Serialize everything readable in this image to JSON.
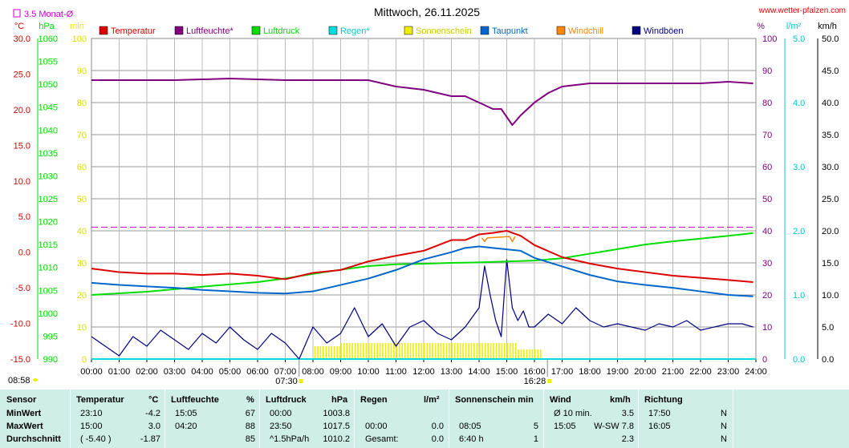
{
  "header": {
    "title": "Mittwoch, 26.11.2025",
    "site": "www.wetter-pfalzen.com",
    "monthly_avg_label": "3.5 Monat-Ø",
    "sunrise": "07:30",
    "sunset": "16:28",
    "update_time": "08:58"
  },
  "colors": {
    "temperature": "#dd0000",
    "humidity": "#800080",
    "pressure": "#00dd00",
    "rain": "#00dddd",
    "sunshine": "#eeee00",
    "dewpoint": "#0066cc",
    "windchill": "#ff8800",
    "gusts": "#000080",
    "table_bg": "#ccf5ee"
  },
  "chart_data": {
    "type": "line",
    "title": "Mittwoch, 26.11.2025",
    "x_ticks": [
      "00:00",
      "01:00",
      "02:00",
      "03:00",
      "04:00",
      "05:00",
      "06:00",
      "07:00",
      "08:00",
      "09:00",
      "10:00",
      "11:00",
      "12:00",
      "13:00",
      "14:00",
      "15:00",
      "16:00",
      "17:00",
      "18:00",
      "19:00",
      "20:00",
      "21:00",
      "22:00",
      "23:00",
      "24:00"
    ],
    "axes": {
      "temperature": {
        "unit": "°C",
        "range": [
          -15,
          30
        ],
        "ticks": [
          "30.0",
          "25.0",
          "20.0",
          "15.0",
          "10.0",
          "5.0",
          "0.0",
          "-5.0",
          "-10.0",
          "-15.0"
        ]
      },
      "pressure": {
        "unit": "hPa",
        "range": [
          990,
          1060
        ],
        "ticks": [
          "1060",
          "1055",
          "1050",
          "1045",
          "1040",
          "1035",
          "1030",
          "1025",
          "1020",
          "1015",
          "1010",
          "1005",
          "1000",
          "995",
          "990"
        ]
      },
      "sunshine": {
        "unit": "min",
        "range": [
          0,
          100
        ],
        "ticks": [
          "100",
          "90",
          "80",
          "70",
          "60",
          "50",
          "40",
          "30",
          "20",
          "10",
          "0"
        ]
      },
      "humidity": {
        "unit": "%",
        "range": [
          0,
          100
        ],
        "ticks": [
          "100",
          "90",
          "80",
          "70",
          "60",
          "50",
          "40",
          "30",
          "20",
          "10",
          "0"
        ]
      },
      "rain": {
        "unit": "l/m²",
        "range": [
          0,
          5
        ],
        "ticks": [
          "5.0",
          "4.0",
          "3.0",
          "2.0",
          "1.0",
          "0.0"
        ]
      },
      "wind": {
        "unit": "km/h",
        "range": [
          0,
          50
        ],
        "ticks": [
          "50.0",
          "45.0",
          "40.0",
          "35.0",
          "30.0",
          "25.0",
          "20.0",
          "15.0",
          "10.0",
          "5.0",
          "0.0"
        ]
      }
    },
    "legend": [
      "Temperatur",
      "Luftfeuchte*",
      "Luftdruck",
      "Regen*",
      "Sonnenschein",
      "Taupunkt",
      "Windchill",
      "Windböen"
    ],
    "monthly_avg_temp": 3.5,
    "series": [
      {
        "name": "Temperatur",
        "axis": "temperature",
        "x": [
          0,
          1,
          2,
          3,
          4,
          5,
          6,
          7,
          8,
          9,
          10,
          11,
          12,
          13,
          13.5,
          14,
          14.5,
          15,
          15.5,
          16,
          17,
          18,
          19,
          20,
          21,
          22,
          23,
          23.9
        ],
        "y": [
          -2.3,
          -2.8,
          -3.0,
          -3.0,
          -3.2,
          -3.0,
          -3.3,
          -3.8,
          -2.9,
          -2.5,
          -1.3,
          -0.5,
          0.2,
          1.7,
          1.7,
          2.5,
          2.7,
          3.0,
          2.3,
          1.0,
          -0.7,
          -1.6,
          -2.3,
          -2.8,
          -3.3,
          -3.6,
          -3.9,
          -4.2
        ]
      },
      {
        "name": "Luftfeuchte*",
        "axis": "humidity",
        "x": [
          0,
          3,
          5,
          7,
          9,
          10,
          11,
          12,
          13,
          13.5,
          14,
          14.5,
          14.8,
          15.2,
          15.5,
          16,
          16.5,
          17,
          18,
          20,
          22,
          23,
          23.9
        ],
        "y": [
          87,
          87,
          87.5,
          87,
          87,
          87,
          85,
          84,
          82,
          82,
          80,
          78,
          78,
          73,
          76,
          80,
          83,
          85,
          86,
          86,
          86,
          86.5,
          86
        ]
      },
      {
        "name": "Luftdruck",
        "axis": "pressure",
        "x": [
          0,
          2,
          4,
          6,
          7,
          8,
          9,
          10,
          11,
          12,
          13,
          14,
          15,
          16,
          17,
          18,
          19,
          20,
          21,
          22,
          23,
          23.9
        ],
        "y": [
          1004,
          1004.7,
          1005.8,
          1006.8,
          1007.6,
          1008.6,
          1009.5,
          1010.3,
          1010.7,
          1010.8,
          1011,
          1011.1,
          1011.3,
          1011.5,
          1012,
          1013,
          1014,
          1015,
          1015.7,
          1016.3,
          1016.9,
          1017.5
        ]
      },
      {
        "name": "Taupunkt",
        "axis": "temperature",
        "x": [
          0,
          1,
          2,
          3,
          4,
          5,
          6,
          7,
          8,
          9,
          10,
          11,
          12,
          13,
          13.5,
          14,
          14.5,
          15,
          15.5,
          16,
          17,
          18,
          19,
          20,
          21,
          22,
          23,
          23.9
        ],
        "y": [
          -4.3,
          -4.6,
          -4.8,
          -5.0,
          -5.3,
          -5.5,
          -5.7,
          -5.8,
          -5.5,
          -4.6,
          -3.7,
          -2.5,
          -1.0,
          0.0,
          0.6,
          0.8,
          0.6,
          0.4,
          0.2,
          -0.8,
          -2.0,
          -3.2,
          -4.1,
          -4.6,
          -5.0,
          -5.5,
          -6.0,
          -6.2
        ]
      },
      {
        "name": "Windböen",
        "axis": "wind",
        "x": [
          0,
          0.5,
          1,
          1.5,
          2,
          2.5,
          3,
          3.5,
          4,
          4.5,
          5,
          5.5,
          6,
          6.5,
          7,
          7.5,
          8,
          8.5,
          9,
          9.5,
          10,
          10.5,
          11,
          11.5,
          12,
          12.5,
          13,
          13.5,
          14,
          14.2,
          14.4,
          14.6,
          14.8,
          15,
          15.2,
          15.4,
          15.6,
          15.8,
          16,
          16.5,
          17,
          17.5,
          18,
          18.5,
          19,
          19.5,
          20,
          20.5,
          21,
          21.5,
          22,
          22.5,
          23,
          23.5,
          23.9
        ],
        "y": [
          3.5,
          2.0,
          0.5,
          3.5,
          2.0,
          4.5,
          3.0,
          1.5,
          4.0,
          2.5,
          5.0,
          3.0,
          1.5,
          4.0,
          2.5,
          0.0,
          5.0,
          2.5,
          4.0,
          8.0,
          3.5,
          5.5,
          2.0,
          5.0,
          6.0,
          4.0,
          3.0,
          5.0,
          8.0,
          14.5,
          10.0,
          6.0,
          3.5,
          15.5,
          8.0,
          6.0,
          7.5,
          5.0,
          5.0,
          7.0,
          5.5,
          8.0,
          6.0,
          5.0,
          5.5,
          5.0,
          4.5,
          5.5,
          5.0,
          6.0,
          4.5,
          5.0,
          5.5,
          5.5,
          5.0
        ]
      },
      {
        "name": "Sonnenschein",
        "axis": "sunshine",
        "x": [
          8.05,
          9,
          10,
          11,
          12,
          13,
          14,
          15,
          15.3,
          16.3
        ],
        "y": [
          4,
          5,
          5,
          5,
          5,
          5,
          5,
          5,
          3,
          3
        ]
      },
      {
        "name": "Regen*",
        "axis": "rain",
        "x": [
          0,
          24
        ],
        "y": [
          0,
          0
        ]
      },
      {
        "name": "Windchill",
        "axis": "temperature",
        "x": [
          14.1,
          14.2,
          14.3,
          15.1,
          15.2,
          15.3
        ],
        "y": [
          2.0,
          1.5,
          2.0,
          2.2,
          1.5,
          2.2
        ]
      }
    ]
  },
  "table": {
    "headers": {
      "sensor": "Sensor",
      "temp": "Temperatur",
      "temp_unit": "°C",
      "hum": "Luftfeuchte",
      "hum_unit": "%",
      "press": "Luftdruck",
      "press_unit": "hPa",
      "rain": "Regen",
      "rain_unit": "l/m²",
      "sun": "Sonnenschein min",
      "wind": "Wind",
      "wind_unit": "km/h",
      "dir": "Richtung"
    },
    "rows": [
      {
        "label": "MinWert",
        "temp_time": "23:10",
        "temp_val": "-4.2",
        "hum_time": "15:05",
        "hum_val": "67",
        "press_time": "00:00",
        "press_val": "1003.8",
        "rain_time": "",
        "rain_val": "",
        "sun_time": "",
        "sun_val": "",
        "wind_time": "Ø 10 min.",
        "wind_val": "3.5",
        "dir_time": "17:50",
        "dir_val": "N"
      },
      {
        "label": "MaxWert",
        "temp_time": "15:00",
        "temp_val": "3.0",
        "hum_time": "04:20",
        "hum_val": "88",
        "press_time": "23:50",
        "press_val": "1017.5",
        "rain_time": "00:00",
        "rain_val": "0.0",
        "sun_time": "08:05",
        "sun_val": "5",
        "wind_time": "15:05",
        "wind_val": "W-SW 7.8",
        "dir_time": "16:05",
        "dir_val": "N"
      },
      {
        "label": "Durchschnitt",
        "temp_time": "( -5.40 )",
        "temp_val": "-1.87",
        "hum_time": "",
        "hum_val": "85",
        "press_time": "^1.5hPa/h",
        "press_val": "1010.2",
        "rain_time": "Gesamt:",
        "rain_val": "0.0",
        "sun_time": "6:40 h",
        "sun_val": "1",
        "wind_time": "",
        "wind_val": "2.3",
        "dir_time": "",
        "dir_val": "N"
      }
    ]
  }
}
